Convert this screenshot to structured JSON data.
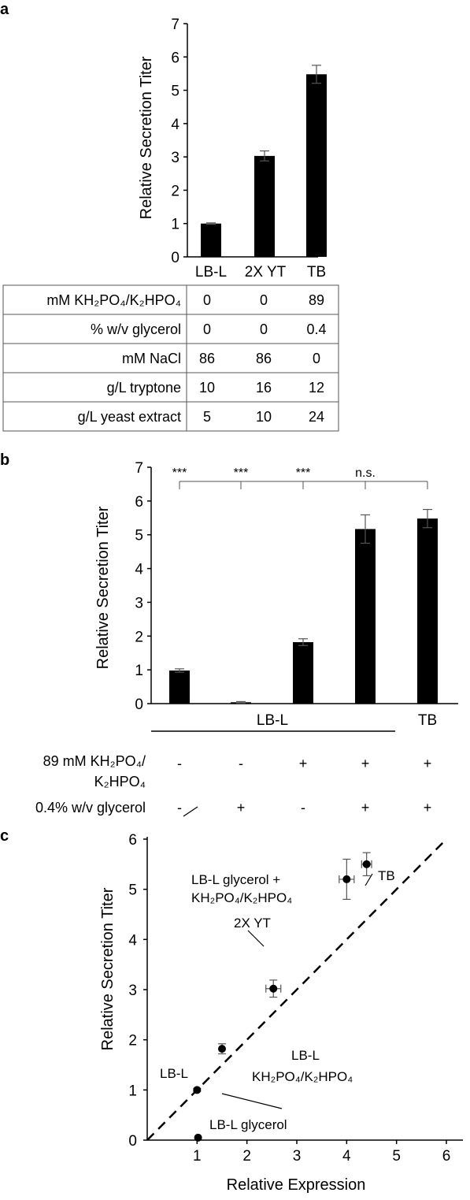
{
  "panels": [
    {
      "letter": "a",
      "chart": {
        "type": "bar",
        "ylabel": "Relative Secretion Titer",
        "ylim": [
          0,
          7
        ],
        "yticks": [
          "0",
          "1",
          "2",
          "3",
          "4",
          "5",
          "6",
          "7"
        ],
        "categories": [
          "LB-L",
          "2X YT",
          "TB"
        ],
        "values": [
          1.0,
          3.03,
          5.48
        ],
        "errors": [
          0.02,
          0.15,
          0.27
        ],
        "bar_color": "#000000"
      },
      "table": {
        "rows": [
          {
            "label": "mM KH₂PO₄/K₂HPO₄",
            "values": [
              "0",
              "0",
              "89"
            ]
          },
          {
            "label": "% w/v glycerol",
            "values": [
              "0",
              "0",
              "0.4"
            ]
          },
          {
            "label": "mM NaCl",
            "values": [
              "86",
              "86",
              "0"
            ]
          },
          {
            "label": "g/L tryptone",
            "values": [
              "10",
              "16",
              "12"
            ]
          },
          {
            "label": "g/L yeast extract",
            "values": [
              "5",
              "10",
              "24"
            ]
          }
        ]
      }
    },
    {
      "letter": "b",
      "chart": {
        "type": "bar",
        "ylabel": "Relative Secretion Titer",
        "ylim": [
          0,
          7
        ],
        "yticks": [
          "0",
          "1",
          "2",
          "3",
          "4",
          "5",
          "6",
          "7"
        ],
        "values": [
          0.98,
          0.04,
          1.82,
          5.17,
          5.48
        ],
        "errors": [
          0.05,
          0.02,
          0.1,
          0.42,
          0.27
        ],
        "significance": [
          "***",
          "***",
          "***",
          "n.s."
        ],
        "group_labels": {
          "lbl": "LB-L",
          "tb": "TB"
        },
        "conditions": [
          {
            "label_line1": "89 mM KH₂PO₄/",
            "label_line2": "K₂HPO₄",
            "marks": [
              "-",
              "-",
              "+",
              "+",
              "+"
            ]
          },
          {
            "label_line1": "0.4% w/v glycerol",
            "label_line2": "",
            "marks": [
              "-",
              "+",
              "-",
              "+",
              "+"
            ]
          }
        ],
        "bar_color": "#000000"
      }
    },
    {
      "letter": "c",
      "chart": {
        "type": "scatter",
        "xlabel": "Relative Expression",
        "ylabel": "Relative Secretion Titer",
        "xlim": [
          0,
          6.3
        ],
        "ylim": [
          0,
          6.3
        ],
        "xticks": [
          "1",
          "2",
          "3",
          "4",
          "5",
          "6"
        ],
        "yticks": [
          "0",
          "1",
          "2",
          "3",
          "4",
          "5",
          "6"
        ],
        "reference_line": "y = x",
        "points": [
          {
            "x": 1.0,
            "y": 1.0,
            "xerr": 0.0,
            "yerr": 0.03,
            "label": "LB-L"
          },
          {
            "x": 1.02,
            "y": 0.05,
            "xerr": 0.0,
            "yerr": 0.0,
            "label": "LB-L glycerol"
          },
          {
            "x": 1.5,
            "y": 1.82,
            "xerr": 0.0,
            "yerr": 0.1,
            "label_line1": "LB-L",
            "label_line2": "KH₂PO₄/K₂HPO₄"
          },
          {
            "x": 2.53,
            "y": 3.02,
            "xerr": 0.15,
            "yerr": 0.17,
            "label": "2X YT"
          },
          {
            "x": 4.0,
            "y": 5.2,
            "xerr": 0.15,
            "yerr": 0.4,
            "label_line1": "LB-L glycerol +",
            "label_line2": "KH₂PO₄/K₂HPO₄"
          },
          {
            "x": 4.4,
            "y": 5.5,
            "xerr": 0.1,
            "yerr": 0.23,
            "label": "TB"
          }
        ],
        "point_color": "#000000"
      }
    }
  ]
}
